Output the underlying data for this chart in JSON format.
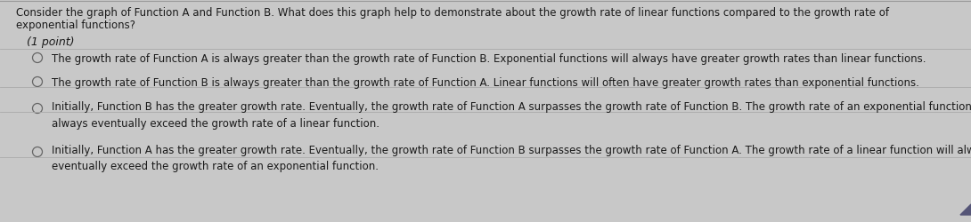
{
  "background_color": "#c8c8c8",
  "inner_background": "#d4d4d4",
  "question_line1": "Consider the graph of Function A and Function B. What does this graph help to demonstrate about the growth rate of linear functions compared to the growth rate of",
  "question_line2": "exponential functions?",
  "points_label": "(1 point)",
  "options": [
    "The growth rate of Function A is always greater than the growth rate of Function B. Exponential functions will always have greater growth rates than linear functions.",
    "The growth rate of Function B is always greater than the growth rate of Function A. Linear functions will often have greater growth rates than exponential functions.",
    "Initially, Function B has the greater growth rate. Eventually, the growth rate of Function A surpasses the growth rate of Function B. The growth rate of an exponential function will\nalways eventually exceed the growth rate of a linear function.",
    "Initially, Function A has the greater growth rate. Eventually, the growth rate of Function B surpasses the growth rate of Function A. The growth rate of a linear function will always\neventually exceed the growth rate of an exponential function."
  ],
  "question_fontsize": 8.5,
  "points_fontsize": 9.0,
  "option_fontsize": 8.5,
  "text_color": "#1a1a1a",
  "separator_color": "#aaaaaa",
  "circle_edge_color": "#666666",
  "border_color": "#999999"
}
